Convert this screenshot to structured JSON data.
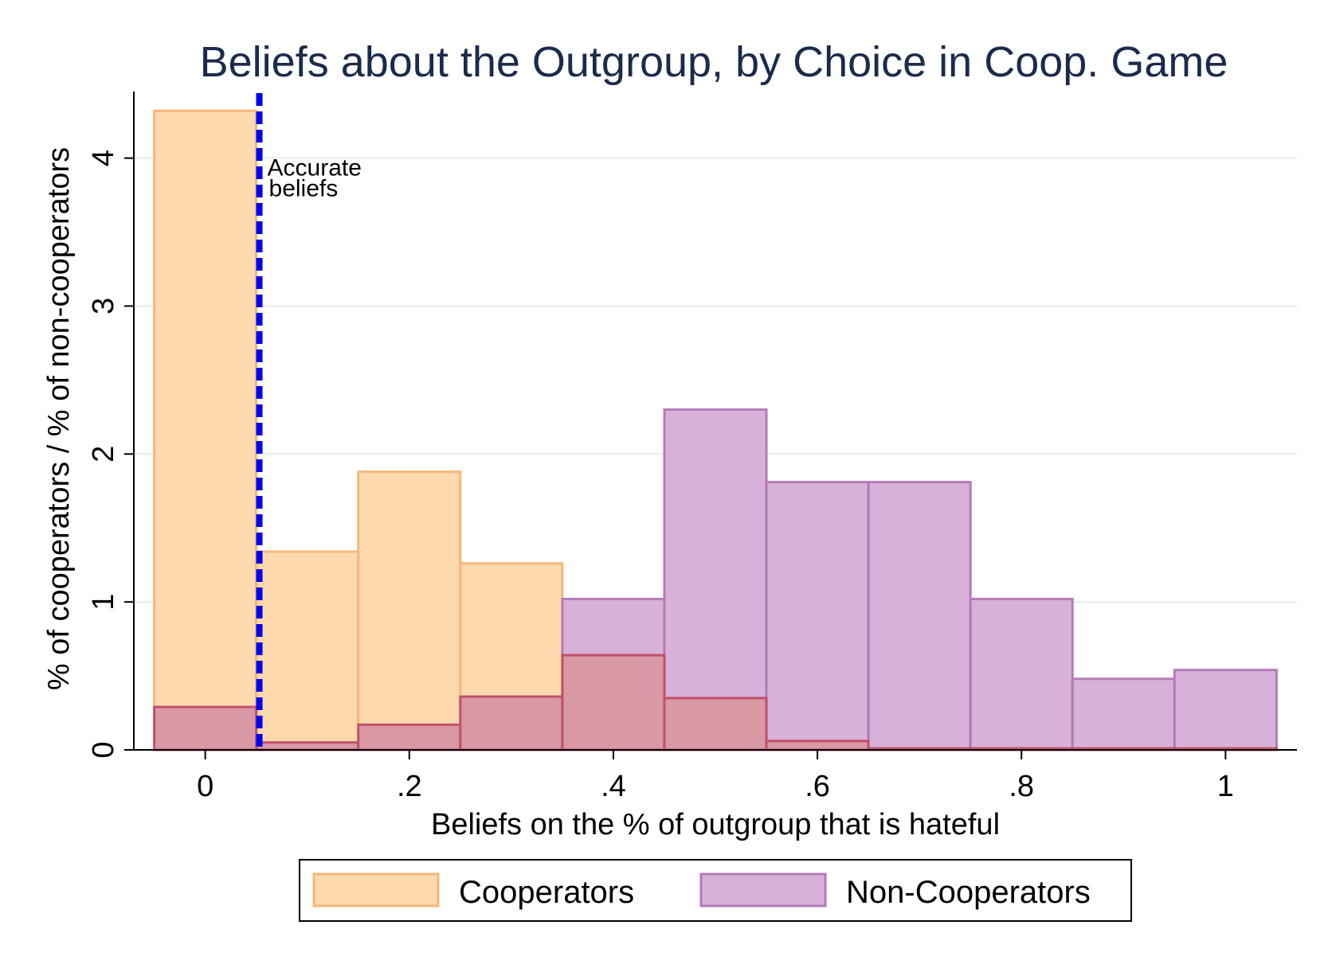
{
  "chart_data": {
    "type": "bar",
    "subtype": "overlaid-histogram",
    "title": "Beliefs about the Outgroup, by Choice in Coop. Game",
    "xlabel": "Beliefs on the % of outgroup that is hateful",
    "ylabel": "% of cooperators / % of non-cooperators",
    "xlim": [
      -0.07,
      1.07
    ],
    "ylim": [
      0,
      4.45
    ],
    "bin_width": 0.1,
    "x_ticks": [
      0,
      0.2,
      0.4,
      0.6,
      0.8,
      1
    ],
    "x_tick_labels": [
      "0",
      ".2",
      ".4",
      ".6",
      ".8",
      "1"
    ],
    "y_ticks": [
      0,
      1,
      2,
      3,
      4
    ],
    "y_tick_labels": [
      "0",
      "1",
      "2",
      "3",
      "4"
    ],
    "grid": true,
    "legend_position": "bottom",
    "categories": [
      0,
      0.1,
      0.2,
      0.3,
      0.4,
      0.5,
      0.6,
      0.7,
      0.8,
      0.9,
      1.0
    ],
    "series": [
      {
        "name": "Cooperators",
        "color": "#ffd9ae",
        "edge_color": "#f6b779",
        "values": [
          4.32,
          1.34,
          1.88,
          1.26,
          0.64,
          0.35,
          0.06,
          0.01,
          0.01,
          0.01,
          0.01
        ]
      },
      {
        "name": "Non-Cooperators",
        "color": "#d8b2d8",
        "edge_color": "#b57ab8",
        "values": [
          0.29,
          0.05,
          0.17,
          0.36,
          1.02,
          2.3,
          1.81,
          1.81,
          1.02,
          0.48,
          0.54
        ]
      }
    ],
    "overlap_color": "#d898a4",
    "overlap_edge_color": "#c24f6c",
    "reference_line": {
      "x": 0.053,
      "color": "#0000ee",
      "style": "dashed",
      "label_lines": [
        "Accurate",
        "beliefs"
      ]
    }
  }
}
